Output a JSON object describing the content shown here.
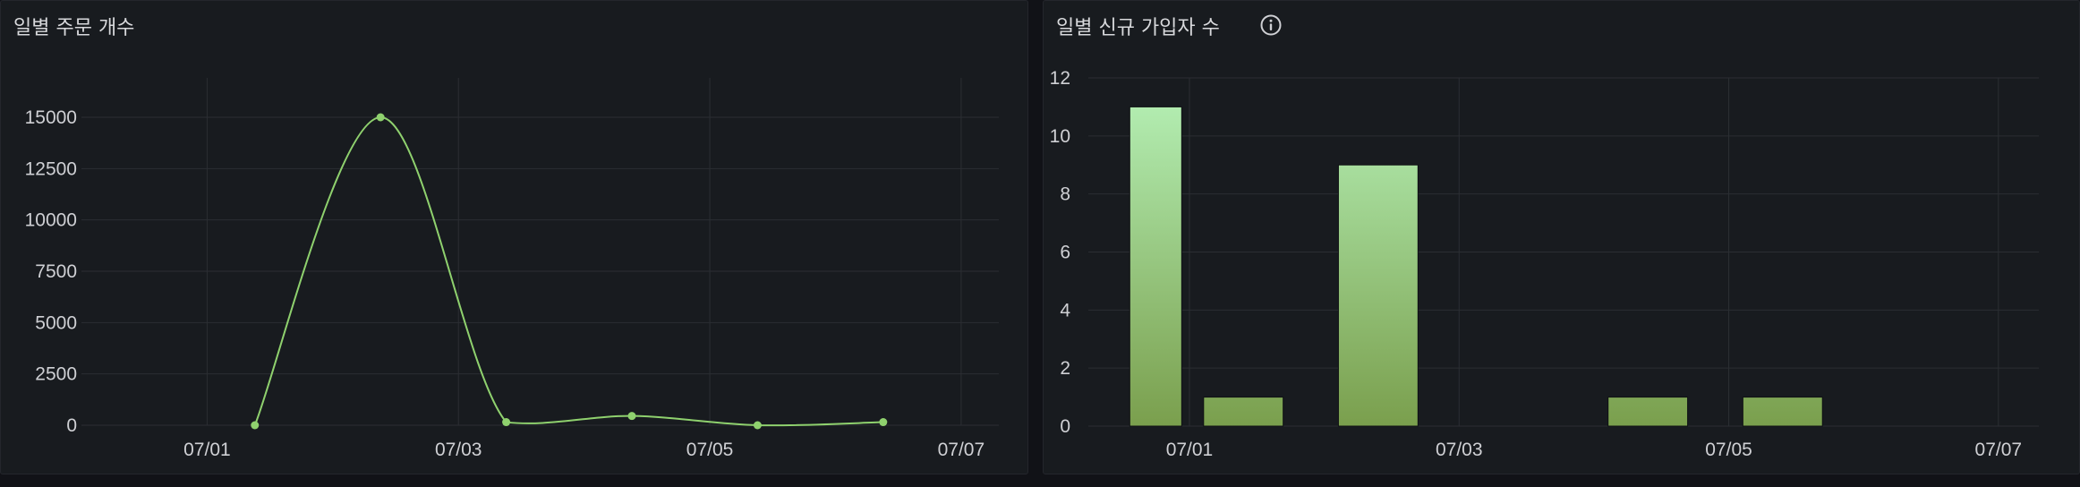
{
  "colors": {
    "background": "#111217",
    "panel": "#181b1f",
    "grid": "#2b2e33",
    "tick_text": "#cfd0d4",
    "line_series": "#8fd16e",
    "bar_top": "#b2ecb0",
    "bar_bottom": "#7a9f4d"
  },
  "panels": [
    {
      "title": "일별 주문 개수",
      "info_icon": ""
    },
    {
      "title": "일별 신규 가입자 수",
      "info_icon": "info-circle-icon"
    }
  ],
  "chart_data": [
    {
      "type": "line",
      "title": "일별 주문 개수",
      "xlabel": "",
      "ylabel": "",
      "x_ticks": [
        "07/01",
        "07/03",
        "07/05",
        "07/07"
      ],
      "x_tick_days": [
        1,
        3,
        5,
        7
      ],
      "xlim_days": [
        0.0,
        7.3
      ],
      "yticks": [
        0,
        2500,
        5000,
        7500,
        10000,
        12500,
        15000
      ],
      "ylim": [
        0,
        17000
      ],
      "grid": true,
      "legend": "none",
      "series": [
        {
          "x_days": [
            1.38,
            2.38,
            3.38,
            4.38,
            5.38,
            6.38
          ],
          "values": [
            0,
            15000,
            150,
            450,
            0,
            150
          ]
        }
      ]
    },
    {
      "type": "bar",
      "title": "일별 신규 가입자 수",
      "xlabel": "",
      "ylabel": "",
      "x_ticks": [
        "07/01",
        "07/03",
        "07/05",
        "07/07"
      ],
      "x_tick_days": [
        1,
        3,
        5,
        7
      ],
      "xlim_days": [
        0.25,
        7.3
      ],
      "yticks": [
        0,
        2,
        4,
        6,
        8,
        10,
        12
      ],
      "ylim": [
        0,
        12
      ],
      "grid": true,
      "legend": "none",
      "series": [
        {
          "x_days": [
            0.75,
            1.4,
            2.4,
            4.4,
            5.4
          ],
          "values": [
            11,
            1,
            9,
            1,
            1
          ]
        }
      ]
    }
  ]
}
